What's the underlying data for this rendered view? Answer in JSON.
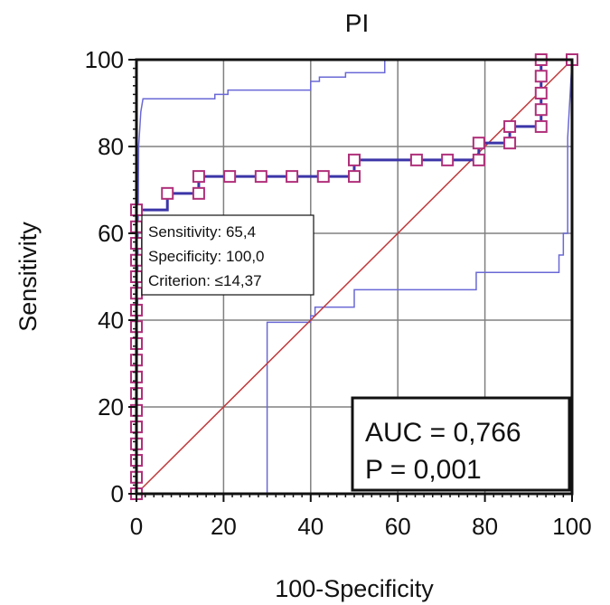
{
  "chart_data": {
    "type": "line",
    "title": "PI",
    "xlabel": "100-Specificity",
    "ylabel": "Sensitivity",
    "xlim": [
      0,
      100
    ],
    "ylim": [
      0,
      100
    ],
    "xticks": [
      "0",
      "20",
      "40",
      "60",
      "80",
      "100"
    ],
    "yticks": [
      "0",
      "20",
      "40",
      "60",
      "80",
      "100"
    ],
    "grid": true,
    "colors": {
      "roc": "#3b35a8",
      "marker": "#b0307a",
      "ci": "#6a68d6",
      "diagonal": "#c0393b",
      "grid": "#808080"
    },
    "series": [
      {
        "role": "roc_curve",
        "values_xy": [
          [
            0,
            0
          ],
          [
            0,
            3.8
          ],
          [
            0,
            7.7
          ],
          [
            0,
            11.5
          ],
          [
            0,
            15.4
          ],
          [
            0,
            19.2
          ],
          [
            0,
            23.1
          ],
          [
            0,
            26.9
          ],
          [
            0,
            30.8
          ],
          [
            0,
            34.6
          ],
          [
            0,
            38.5
          ],
          [
            0,
            42.3
          ],
          [
            0,
            46.2
          ],
          [
            0,
            50.0
          ],
          [
            0,
            53.8
          ],
          [
            0,
            57.7
          ],
          [
            0,
            61.5
          ],
          [
            0,
            65.4
          ],
          [
            7.1,
            65.4
          ],
          [
            7.1,
            69.2
          ],
          [
            14.3,
            69.2
          ],
          [
            14.3,
            73.1
          ],
          [
            21.4,
            73.1
          ],
          [
            28.6,
            73.1
          ],
          [
            35.7,
            73.1
          ],
          [
            42.9,
            73.1
          ],
          [
            50.0,
            73.1
          ],
          [
            50.0,
            76.9
          ],
          [
            64.3,
            76.9
          ],
          [
            71.4,
            76.9
          ],
          [
            78.6,
            76.9
          ],
          [
            78.6,
            80.8
          ],
          [
            85.7,
            80.8
          ],
          [
            85.7,
            84.6
          ],
          [
            92.9,
            84.6
          ],
          [
            92.9,
            88.5
          ],
          [
            92.9,
            92.3
          ],
          [
            92.9,
            96.2
          ],
          [
            92.9,
            100
          ],
          [
            100,
            100
          ]
        ],
        "markers": [
          [
            0,
            0
          ],
          [
            0,
            3.8
          ],
          [
            0,
            7.7
          ],
          [
            0,
            11.5
          ],
          [
            0,
            15.4
          ],
          [
            0,
            19.2
          ],
          [
            0,
            23.1
          ],
          [
            0,
            26.9
          ],
          [
            0,
            30.8
          ],
          [
            0,
            34.6
          ],
          [
            0,
            38.5
          ],
          [
            0,
            42.3
          ],
          [
            0,
            46.2
          ],
          [
            0,
            50.0
          ],
          [
            0,
            53.8
          ],
          [
            0,
            57.7
          ],
          [
            0,
            61.5
          ],
          [
            0,
            65.4
          ],
          [
            7.1,
            69.2
          ],
          [
            14.3,
            69.2
          ],
          [
            14.3,
            73.1
          ],
          [
            21.4,
            73.1
          ],
          [
            28.6,
            73.1
          ],
          [
            35.7,
            73.1
          ],
          [
            42.9,
            73.1
          ],
          [
            50.0,
            73.1
          ],
          [
            50.0,
            76.9
          ],
          [
            64.3,
            76.9
          ],
          [
            71.4,
            76.9
          ],
          [
            78.6,
            76.9
          ],
          [
            78.6,
            80.8
          ],
          [
            85.7,
            80.8
          ],
          [
            85.7,
            84.6
          ],
          [
            92.9,
            84.6
          ],
          [
            92.9,
            88.5
          ],
          [
            92.9,
            92.3
          ],
          [
            92.9,
            96.2
          ],
          [
            92.9,
            100
          ],
          [
            100,
            100
          ]
        ]
      },
      {
        "role": "upper_confidence_bound",
        "values_xy": [
          [
            0,
            0
          ],
          [
            0.5,
            80
          ],
          [
            1,
            88
          ],
          [
            1.5,
            91
          ],
          [
            18,
            91
          ],
          [
            18,
            92
          ],
          [
            21,
            92
          ],
          [
            21,
            93
          ],
          [
            40,
            93
          ],
          [
            40,
            95
          ],
          [
            42,
            95
          ],
          [
            42,
            96
          ],
          [
            48,
            96
          ],
          [
            48,
            97
          ],
          [
            57,
            97
          ],
          [
            57,
            100
          ],
          [
            69,
            100
          ]
        ]
      },
      {
        "role": "lower_confidence_bound",
        "values_xy": [
          [
            0,
            0
          ],
          [
            30,
            0
          ],
          [
            30,
            39.5
          ],
          [
            40,
            39.5
          ],
          [
            40,
            41
          ],
          [
            41,
            41
          ],
          [
            41,
            43
          ],
          [
            50,
            43
          ],
          [
            50,
            47
          ],
          [
            78,
            47
          ],
          [
            78,
            51
          ],
          [
            97,
            51
          ],
          [
            97,
            55
          ],
          [
            98,
            55
          ],
          [
            98,
            60
          ],
          [
            99,
            60
          ],
          [
            99,
            82
          ],
          [
            100,
            100
          ]
        ]
      },
      {
        "role": "reference_line",
        "values_xy": [
          [
            0,
            0
          ],
          [
            100,
            100
          ]
        ]
      }
    ],
    "annotations": {
      "criterion_box": {
        "anchor_xy": [
          0,
          65.4
        ],
        "lines": [
          "Sensitivity: 65,4",
          "Specificity: 100,0",
          "Criterion: ≤14,37"
        ]
      },
      "stats_box": {
        "position": "bottom-right",
        "lines": [
          "AUC = 0,766",
          "P = 0,001"
        ]
      }
    }
  }
}
